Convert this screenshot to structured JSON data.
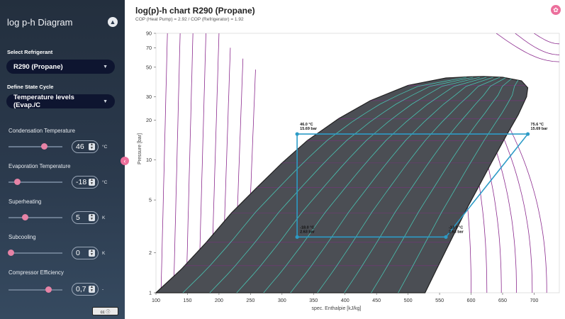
{
  "sidebar": {
    "title": "log p-h Diagram",
    "collapse_icon": "chevron-up-icon",
    "refrigerant_label": "Select Refrigerant",
    "refrigerant_value": "R290 (Propane)",
    "cycle_label": "Define State Cycle",
    "cycle_value": "Temperature levels (Evap./C",
    "controls": [
      {
        "label": "Condensation Temperature",
        "value": "46",
        "unit": "°C",
        "position": 0.66
      },
      {
        "label": "Evaporation Temperature",
        "value": "-18",
        "unit": "°C",
        "position": 0.16
      },
      {
        "label": "Superheating",
        "value": "5",
        "unit": "K",
        "position": 0.31
      },
      {
        "label": "Subcooling",
        "value": "0",
        "unit": "K",
        "position": 0.04
      },
      {
        "label": "Compressor Efficiency",
        "value": "0,7",
        "unit": "-",
        "position": 0.74
      }
    ],
    "license_badge": "cc ⓘ"
  },
  "main": {
    "title": "log(p)-h chart R290 (Propane)",
    "subtitle": "COP (Heat Pump) = 2.92 / COP (Refrigerator) = 1.92"
  },
  "chart_data": {
    "type": "line",
    "title": "log(p)-h chart R290 (Propane)",
    "xlabel": "spec. Enthalpie [kJ/kg]",
    "ylabel": "Pressure [bar]",
    "xlim": [
      100,
      740
    ],
    "ylim": [
      1,
      90
    ],
    "y_scale": "log",
    "x_ticks": [
      100,
      150,
      200,
      250,
      300,
      350,
      400,
      450,
      500,
      550,
      600,
      650,
      700
    ],
    "y_ticks": [
      1,
      2,
      5,
      10,
      20,
      30,
      50,
      70,
      90
    ],
    "colors": {
      "dome": "#4b4e54",
      "isotherm": "#8b2a8e",
      "quality": "#49c2b1",
      "cycle": "#2c9bc6"
    },
    "cycle": {
      "points": [
        {
          "h": 560,
          "p": 2.63,
          "label1": "-13.0 °C",
          "label2": "2.63 bar"
        },
        {
          "h": 690,
          "p": 15.69,
          "label1": "75.6 °C",
          "label2": "15.69 bar"
        },
        {
          "h": 324,
          "p": 15.69,
          "label1": "46.0 °C",
          "label2": "15.69 bar"
        },
        {
          "h": 324,
          "p": 2.63,
          "label1": "-18.0 °C",
          "label2": "2.63 bar"
        }
      ]
    },
    "dome": {
      "liquid": [
        [
          100,
          1
        ],
        [
          140,
          1.5
        ],
        [
          180,
          2.4
        ],
        [
          220,
          4
        ],
        [
          260,
          6.2
        ],
        [
          300,
          9.5
        ],
        [
          340,
          14
        ],
        [
          390,
          20.5
        ],
        [
          440,
          28
        ],
        [
          500,
          36.5
        ],
        [
          560,
          41.5
        ],
        [
          595,
          42.3
        ]
      ],
      "vapor": [
        [
          527,
          1
        ],
        [
          548,
          1.6
        ],
        [
          570,
          2.6
        ],
        [
          592,
          4.2
        ],
        [
          612,
          6.3
        ],
        [
          632,
          9.5
        ],
        [
          655,
          15
        ],
        [
          675,
          22
        ],
        [
          688,
          30
        ],
        [
          690,
          35
        ],
        [
          680,
          39.5
        ],
        [
          650,
          42
        ],
        [
          620,
          42.6
        ],
        [
          595,
          42.3
        ]
      ]
    }
  }
}
